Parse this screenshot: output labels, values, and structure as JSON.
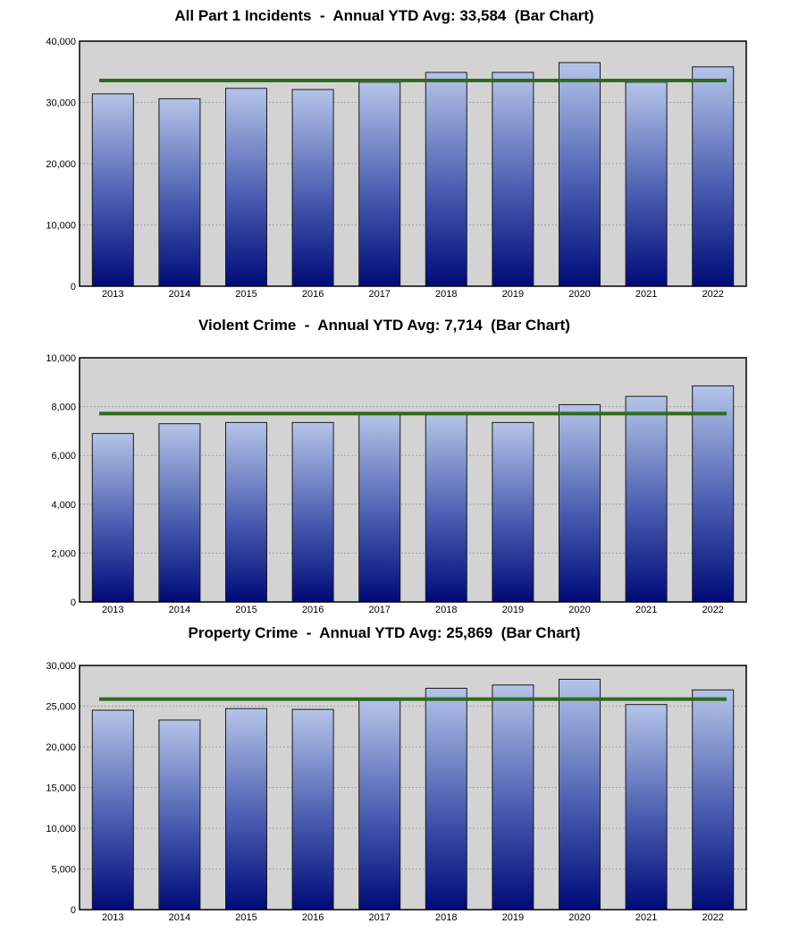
{
  "charts": [
    {
      "title": "All Part 1 Incidents  -  Annual YTD Avg: 33,584  (Bar Chart)",
      "average": 33584,
      "ylim": [
        0,
        40000
      ],
      "y_ticks": [
        "0",
        "10,000",
        "20,000",
        "30,000",
        "40,000"
      ],
      "y_tick_values": [
        0,
        10000,
        20000,
        30000,
        40000
      ]
    },
    {
      "title": "Violent Crime  -  Annual YTD Avg: 7,714  (Bar Chart)",
      "average": 7714,
      "ylim": [
        0,
        10000
      ],
      "y_ticks": [
        "0",
        "2,000",
        "4,000",
        "6,000",
        "8,000",
        "10,000"
      ],
      "y_tick_values": [
        0,
        2000,
        4000,
        6000,
        8000,
        10000
      ]
    },
    {
      "title": "Property Crime  -  Annual YTD Avg: 25,869  (Bar Chart)",
      "average": 25869,
      "ylim": [
        0,
        30000
      ],
      "y_ticks": [
        "0",
        "5,000",
        "10,000",
        "15,000",
        "20,000",
        "25,000",
        "30,000"
      ],
      "y_tick_values": [
        0,
        5000,
        10000,
        15000,
        20000,
        25000,
        30000
      ]
    }
  ],
  "colors": {
    "plot_background": "#d3d3d3",
    "bar_top": "#b4c4e8",
    "bar_bottom": "#000a78",
    "average_line": "#2e6b1f",
    "gridline": "#a0a0a0"
  },
  "chart_data": [
    {
      "type": "bar",
      "title": "All Part 1 Incidents  -  Annual YTD Avg: 33,584  (Bar Chart)",
      "categories": [
        "2013",
        "2014",
        "2015",
        "2016",
        "2017",
        "2018",
        "2019",
        "2020",
        "2021",
        "2022"
      ],
      "values": [
        31400,
        30600,
        32300,
        32100,
        33300,
        34900,
        34900,
        36500,
        33300,
        35800
      ],
      "ylim": [
        0,
        40000
      ],
      "grid": true
    },
    {
      "type": "bar",
      "title": "Violent Crime  -  Annual YTD Avg: 7,714  (Bar Chart)",
      "categories": [
        "2013",
        "2014",
        "2015",
        "2016",
        "2017",
        "2018",
        "2019",
        "2020",
        "2021",
        "2022"
      ],
      "values": [
        6900,
        7300,
        7350,
        7350,
        7700,
        7700,
        7350,
        8080,
        8420,
        8850
      ],
      "ylim": [
        0,
        10000
      ],
      "grid": true
    },
    {
      "type": "bar",
      "title": "Property Crime  -  Annual YTD Avg: 25,869  (Bar Chart)",
      "categories": [
        "2013",
        "2014",
        "2015",
        "2016",
        "2017",
        "2018",
        "2019",
        "2020",
        "2021",
        "2022"
      ],
      "values": [
        24500,
        23300,
        24700,
        24600,
        25700,
        27200,
        27600,
        28300,
        25200,
        27000
      ],
      "ylim": [
        0,
        30000
      ],
      "grid": true
    }
  ]
}
